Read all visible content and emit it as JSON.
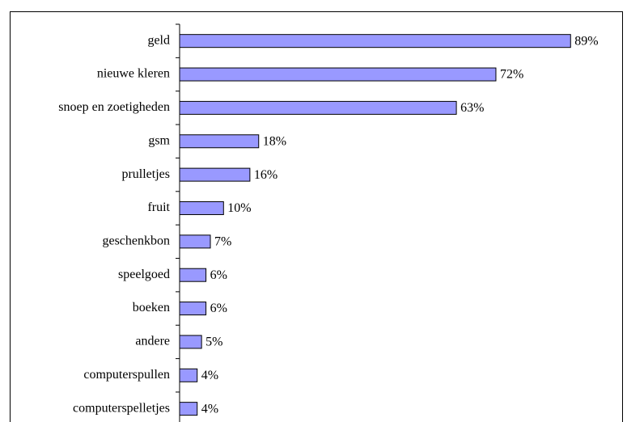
{
  "chart_data": {
    "type": "bar",
    "orientation": "horizontal",
    "categories": [
      "geld",
      "nieuwe kleren",
      "snoep en zoetigheden",
      "gsm",
      "prulletjes",
      "fruit",
      "geschenkbon",
      "speelgoed",
      "boeken",
      "andere",
      "computerspullen",
      "computerspelletjes"
    ],
    "values": [
      89,
      72,
      63,
      18,
      16,
      10,
      7,
      6,
      6,
      5,
      4,
      4
    ],
    "value_labels": [
      "89%",
      "72%",
      "63%",
      "18%",
      "16%",
      "10%",
      "7%",
      "6%",
      "6%",
      "5%",
      "4%",
      "4%"
    ],
    "color": "#9999ff",
    "xlim": [
      0,
      100
    ]
  }
}
